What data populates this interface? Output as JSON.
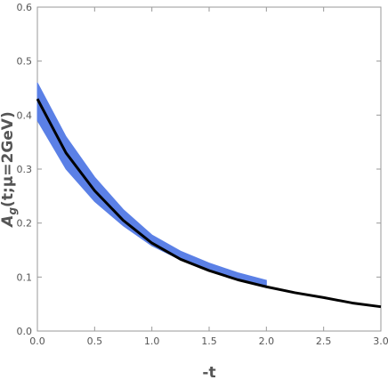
{
  "chart_data": {
    "type": "line",
    "xlabel": "-t",
    "ylabel": {
      "main": "A",
      "sub": "g",
      "rest": "(t;μ=2GeV)"
    },
    "xlim": [
      0,
      3
    ],
    "ylim": [
      0,
      0.6
    ],
    "xticks": [
      {
        "value": 0,
        "label": "0.0"
      },
      {
        "value": 0.5,
        "label": "0.5"
      },
      {
        "value": 1,
        "label": "1.0"
      },
      {
        "value": 1.5,
        "label": "1.5"
      },
      {
        "value": 2,
        "label": "2.0"
      },
      {
        "value": 2.5,
        "label": "2.5"
      },
      {
        "value": 3,
        "label": "3.0"
      }
    ],
    "yticks": [
      {
        "value": 0,
        "label": "0.0"
      },
      {
        "value": 0.1,
        "label": "0.1"
      },
      {
        "value": 0.2,
        "label": "0.2"
      },
      {
        "value": 0.3,
        "label": "0.3"
      },
      {
        "value": 0.4,
        "label": "0.4"
      },
      {
        "value": 0.5,
        "label": "0.5"
      },
      {
        "value": 0.6,
        "label": "0.6"
      }
    ],
    "band": {
      "color": "#5b80e6",
      "x": [
        0,
        0.25,
        0.5,
        0.75,
        1,
        1.25,
        1.5,
        1.75,
        2
      ],
      "lower": [
        0.39,
        0.3,
        0.24,
        0.195,
        0.158,
        0.132,
        0.113,
        0.098,
        0.085
      ],
      "upper": [
        0.46,
        0.36,
        0.285,
        0.225,
        0.178,
        0.148,
        0.126,
        0.108,
        0.094
      ]
    },
    "line": {
      "color": "#000000",
      "x": [
        0,
        0.25,
        0.5,
        0.75,
        1,
        1.25,
        1.5,
        1.75,
        2,
        2.25,
        2.5,
        2.75,
        3
      ],
      "values": [
        0.43,
        0.33,
        0.26,
        0.205,
        0.163,
        0.133,
        0.112,
        0.095,
        0.082,
        0.071,
        0.062,
        0.052,
        0.045
      ]
    }
  }
}
